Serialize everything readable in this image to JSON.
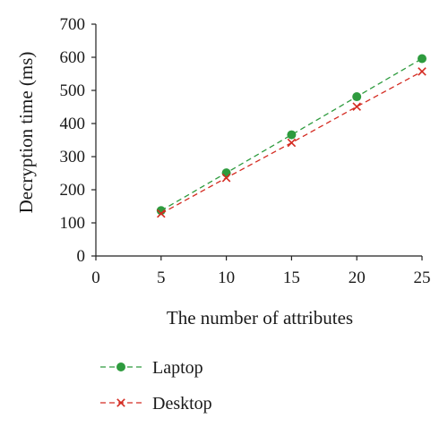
{
  "chart_data": {
    "type": "line",
    "xlabel": "The number of attributes",
    "ylabel": "Decryption time (ms)",
    "xlim": [
      0,
      25
    ],
    "ylim": [
      0,
      700
    ],
    "xticks": [
      "0",
      "5",
      "10",
      "15",
      "20",
      "25"
    ],
    "yticks": [
      "0",
      "100",
      "200",
      "300",
      "400",
      "500",
      "600",
      "700"
    ],
    "grid": false,
    "legend_position": "bottom",
    "series": [
      {
        "name": "Laptop",
        "color": "#2e9b3e",
        "marker": "circle",
        "line_style": "dashed",
        "x": [
          5,
          10,
          15,
          20,
          25
        ],
        "y": [
          137,
          251,
          366,
          481,
          596
        ]
      },
      {
        "name": "Desktop",
        "color": "#d42a20",
        "marker": "x",
        "line_style": "dashed",
        "x": [
          5,
          10,
          15,
          20,
          25
        ],
        "y": [
          128,
          236,
          342,
          451,
          557
        ]
      }
    ]
  }
}
